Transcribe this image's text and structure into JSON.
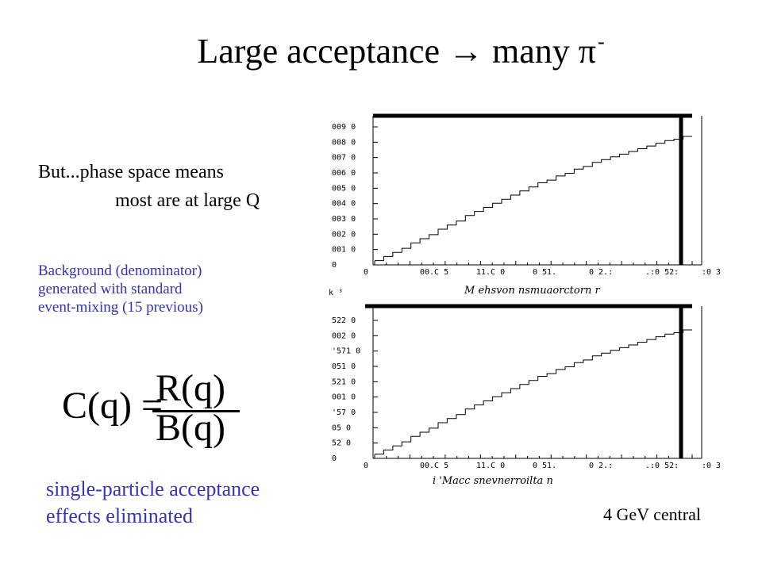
{
  "slide": {
    "title_text": "Large acceptance → many π",
    "title_superscript": "-",
    "caveat_line1": "But...phase space means",
    "caveat_line2": "most are at large Q",
    "note_line1": "Background (denominator)",
    "note_line2": "generated with standard",
    "note_line3": "event-mixing (15 previous)",
    "formula": {
      "lhs": "C(q) =",
      "numerator": "R(q)",
      "denominator": "B(q)"
    },
    "effects_line1": "single-particle acceptance",
    "effects_line2": "effects eliminated",
    "energy_label": "4 GeV central"
  },
  "chart_data": [
    {
      "type": "line",
      "style": "histogram",
      "xlabel": "M ehsvon nsmuaorctorn r",
      "x_tick_labels": [
        "0",
        "00.C 5",
        "11.C 0",
        "0 51.",
        "0 2.:",
        ".:0 52:",
        ":0 3"
      ],
      "y_tick_labels": [
        "0",
        "001 0",
        "002 0",
        "003 0",
        "004 0",
        "005 0",
        "006 0",
        "007 0",
        "008 0",
        "009 0"
      ],
      "xlim": [
        0,
        1
      ],
      "ylim": [
        0,
        1
      ],
      "values": [
        0.02,
        0.05,
        0.08,
        0.11,
        0.15,
        0.18,
        0.21,
        0.25,
        0.28,
        0.31,
        0.35,
        0.38,
        0.41,
        0.44,
        0.47,
        0.5,
        0.53,
        0.56,
        0.59,
        0.61,
        0.64,
        0.66,
        0.69,
        0.71,
        0.74,
        0.76,
        0.78,
        0.8,
        0.82,
        0.84,
        0.86,
        0.88,
        0.9,
        0.91,
        0.93
      ]
    },
    {
      "type": "line",
      "style": "histogram",
      "corner_label": "k ³",
      "xlabel": "i 'Macc snevnerroilta n",
      "x_tick_labels": [
        "0",
        "00.C 5",
        "11.C 0",
        "0 51.",
        "0 2.:",
        ".:0 52:",
        ":0 3"
      ],
      "y_tick_labels": [
        "0",
        "52 0",
        "05 0",
        "'57 0",
        "001 0",
        "521 0",
        "051 0",
        "'571 0",
        "002 0",
        "522 0"
      ],
      "xlim": [
        0,
        1
      ],
      "ylim": [
        0,
        1
      ],
      "values": [
        0.02,
        0.05,
        0.08,
        0.11,
        0.15,
        0.18,
        0.21,
        0.25,
        0.28,
        0.31,
        0.35,
        0.38,
        0.41,
        0.44,
        0.47,
        0.5,
        0.53,
        0.56,
        0.59,
        0.61,
        0.64,
        0.66,
        0.69,
        0.71,
        0.74,
        0.76,
        0.78,
        0.8,
        0.82,
        0.84,
        0.86,
        0.88,
        0.9,
        0.91,
        0.93
      ]
    }
  ]
}
